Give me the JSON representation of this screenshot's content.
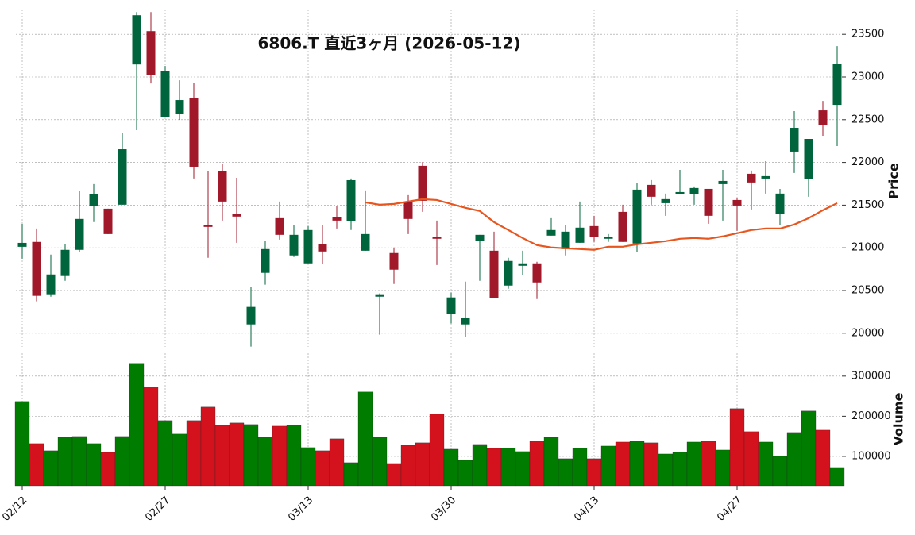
{
  "chart_data": [
    {
      "type": "candlestick",
      "title": "6806.T  直近3ヶ月  (2026-05-12)",
      "ylabel": "Price",
      "categories": [
        "02/12",
        null,
        null,
        null,
        null,
        null,
        null,
        null,
        null,
        null,
        "02/27",
        null,
        null,
        null,
        null,
        null,
        null,
        null,
        null,
        null,
        "03/13",
        null,
        null,
        null,
        null,
        null,
        null,
        null,
        null,
        null,
        "03/30",
        null,
        null,
        null,
        null,
        null,
        null,
        null,
        null,
        null,
        "04/13",
        null,
        null,
        null,
        null,
        null,
        null,
        null,
        null,
        null,
        "04/27",
        null,
        null,
        null,
        null,
        null,
        null,
        null
      ],
      "open": [
        21012,
        21069,
        20447,
        20670,
        20976,
        21486,
        21458,
        21505,
        23147,
        23537,
        22526,
        22572,
        22758,
        21264,
        21895,
        21393,
        20103,
        20707,
        21347,
        20911,
        20818,
        21041,
        21356,
        21310,
        20966,
        20428,
        20939,
        21533,
        21960,
        21124,
        20224,
        20103,
        21078,
        20966,
        20558,
        20790,
        20818,
        21143,
        20985,
        21059,
        21254,
        21106,
        21421,
        21050,
        21737,
        21523,
        21625,
        21625,
        21690,
        21746,
        21560,
        21867,
        21811,
        21393,
        22127,
        21802,
        22609,
        22674
      ],
      "high": [
        21281,
        21226,
        20920,
        21041,
        21663,
        21746,
        21458,
        22340,
        23760,
        23760,
        23129,
        22962,
        22934,
        21895,
        21987,
        21820,
        20540,
        21078,
        21542,
        21264,
        21254,
        21264,
        21486,
        21811,
        21672,
        20466,
        21004,
        21616,
        22006,
        21319,
        20475,
        20605,
        21152,
        21189,
        20883,
        20966,
        20837,
        21347,
        21264,
        21542,
        21375,
        21161,
        21505,
        21755,
        21793,
        21635,
        21913,
        21718,
        21690,
        21913,
        21579,
        21904,
        22015,
        21690,
        22600,
        22275,
        22720,
        23361
      ],
      "low": [
        20873,
        20373,
        20428,
        20614,
        20948,
        21301,
        21161,
        21505,
        22377,
        22925,
        22526,
        22498,
        21811,
        20883,
        21319,
        21059,
        19844,
        20568,
        21096,
        20892,
        20818,
        20809,
        21226,
        21208,
        20966,
        19983,
        20577,
        21161,
        21421,
        20799,
        20113,
        19955,
        20614,
        20410,
        20521,
        20679,
        20400,
        21143,
        20911,
        21059,
        21069,
        21069,
        21069,
        20948,
        21505,
        21375,
        21625,
        21505,
        21282,
        21319,
        21198,
        21449,
        21635,
        21264,
        21876,
        21598,
        22312,
        22191
      ],
      "close": [
        21058,
        20438,
        20688,
        20976,
        21338,
        21625,
        21161,
        22154,
        23723,
        23027,
        23073,
        22730,
        21950,
        21245,
        21542,
        21366,
        20308,
        20985,
        21152,
        21152,
        21208,
        20957,
        21319,
        21792,
        21161,
        20447,
        20744,
        21338,
        21551,
        21106,
        20419,
        20178,
        21152,
        20410,
        20846,
        20818,
        20595,
        21208,
        21189,
        21236,
        21124,
        21124,
        21069,
        21681,
        21598,
        21570,
        21653,
        21700,
        21375,
        21783,
        21495,
        21765,
        21839,
        21635,
        22405,
        22275,
        22442,
        23157
      ],
      "moving_average": [
        null,
        null,
        null,
        null,
        null,
        null,
        null,
        null,
        null,
        null,
        null,
        null,
        null,
        null,
        null,
        null,
        null,
        null,
        null,
        null,
        null,
        null,
        null,
        null,
        21532,
        21505,
        21514,
        21542,
        21570,
        21560,
        21514,
        21468,
        21431,
        21301,
        21208,
        21115,
        21031,
        21004,
        20994,
        20985,
        20976,
        21013,
        21013,
        21041,
        21059,
        21078,
        21106,
        21115,
        21106,
        21134,
        21171,
        21208,
        21226,
        21226,
        21273,
        21347,
        21440,
        21523
      ],
      "up_color": "#00643c",
      "down_color": "#a0182a",
      "ma_color": "#e8561f",
      "ylim": [
        19840,
        23790
      ],
      "yticks": [
        20000,
        20500,
        21000,
        21500,
        22000,
        22500,
        23000,
        23500
      ],
      "grid": true
    },
    {
      "type": "bar",
      "ylabel": "Volume",
      "values": [
        236600,
        131700,
        113900,
        147500,
        149500,
        131700,
        109900,
        149500,
        331700,
        272300,
        189100,
        155500,
        189100,
        222800,
        177200,
        183200,
        179200,
        147500,
        175200,
        177200,
        121800,
        113900,
        143600,
        84200,
        260400,
        147500,
        82200,
        127700,
        133700,
        204900,
        117800,
        90100,
        129700,
        119800,
        119800,
        111900,
        137600,
        147500,
        94100,
        119800,
        94100,
        125700,
        135600,
        137600,
        133700,
        105900,
        109900,
        135600,
        137600,
        115800,
        218800,
        161400,
        135600,
        100000,
        159400,
        212900,
        165300,
        72300
      ],
      "up_color": "#007d00",
      "down_color": "#d4121d",
      "ylim": [
        26700,
        357000
      ],
      "yticks": [
        100000,
        200000,
        300000
      ],
      "grid": true
    }
  ]
}
